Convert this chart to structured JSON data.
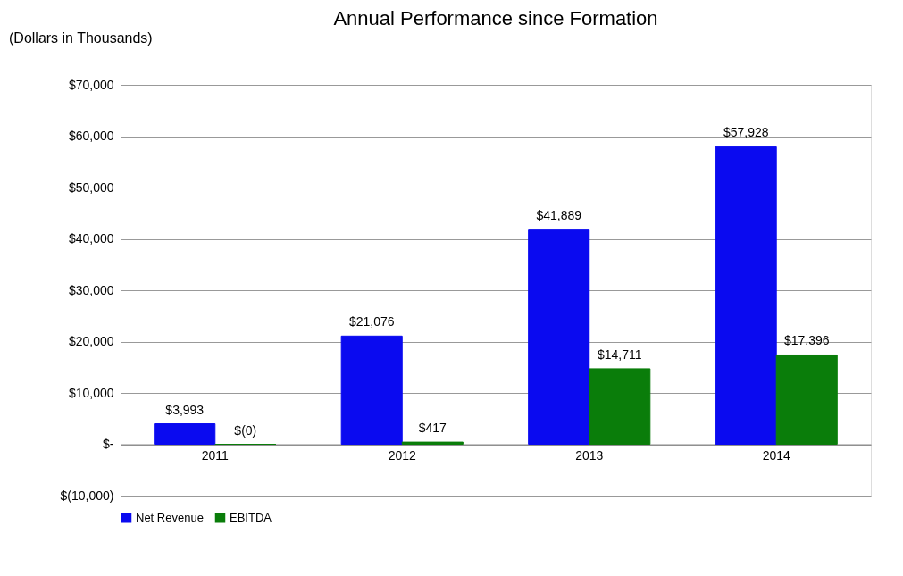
{
  "chart_data": {
    "type": "bar",
    "title": "Annual Performance since Formation",
    "annotations": [
      "(Dollars in Thousands)"
    ],
    "categories": [
      "2011",
      "2012",
      "2013",
      "2014"
    ],
    "series": [
      {
        "name": "Net Revenue",
        "color": "#0a0af0",
        "values": [
          3993,
          21076,
          41889,
          57928
        ],
        "value_labels": [
          "$3,993",
          "$21,076",
          "$41,889",
          "$57,928"
        ]
      },
      {
        "name": "EBITDA",
        "color": "#0a7d0a",
        "values": [
          0,
          417,
          14711,
          17396
        ],
        "value_labels": [
          "$(0)",
          "$417",
          "$14,711",
          "$17,396"
        ]
      }
    ],
    "ylim": [
      -10000,
      70000
    ],
    "yticks": [
      {
        "value": -10000,
        "label": "$(10,000)"
      },
      {
        "value": 0,
        "label": "$-"
      },
      {
        "value": 10000,
        "label": "$10,000"
      },
      {
        "value": 20000,
        "label": "$20,000"
      },
      {
        "value": 30000,
        "label": "$30,000"
      },
      {
        "value": 40000,
        "label": "$40,000"
      },
      {
        "value": 50000,
        "label": "$50,000"
      },
      {
        "value": 60000,
        "label": "$60,000"
      },
      {
        "value": 70000,
        "label": "$70,000"
      }
    ],
    "grid": "y",
    "legend": "bottom"
  }
}
